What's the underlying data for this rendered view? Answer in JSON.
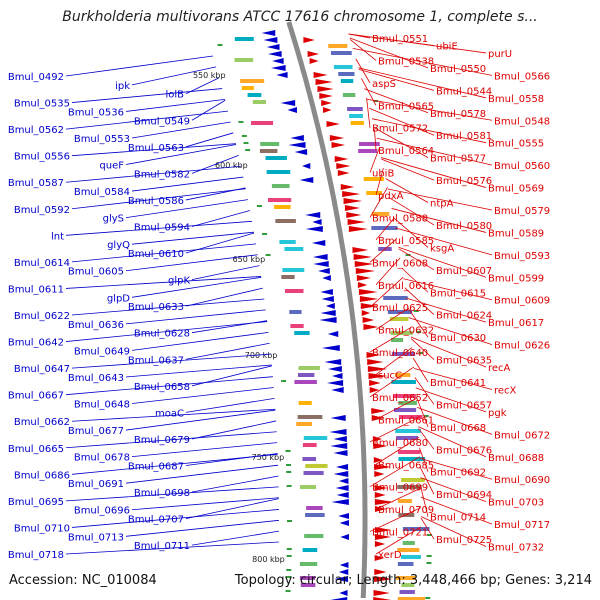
{
  "title": "Burkholderia multivorans ATCC 17616 chromosome 1, complete s...",
  "footer": {
    "accession": "Accession: NC_010084",
    "summary": "Topology: circular; Length: 3,448,466 bp; Genes: 3,214"
  },
  "colors": {
    "reverse": "#0000cc",
    "forward": "#dd0000",
    "backbone": "#8a8a8a"
  },
  "scale_labels": [
    "550 kbp",
    "600 kbp",
    "650 kbp",
    "700 kbp",
    "750 kbp",
    "800 kbp"
  ],
  "reverse_genes": [
    "Bmul_0492",
    "ipk",
    "lolB",
    "Bmul_0535",
    "Bmul_0536",
    "Bmul_0549",
    "Bmul_0562",
    "Bmul_0553",
    "Bmul_0563",
    "Bmul_0556",
    "queF",
    "Bmul_0582",
    "Bmul_0587",
    "Bmul_0584",
    "Bmul_0586",
    "Bmul_0592",
    "glyS",
    "Bmul_0594",
    "lnt",
    "glyQ",
    "Bmul_0610",
    "Bmul_0614",
    "Bmul_0605",
    "glpK",
    "Bmul_0611",
    "glpD",
    "Bmul_0633",
    "Bmul_0622",
    "Bmul_0636",
    "Bmul_0628",
    "Bmul_0642",
    "Bmul_0649",
    "Bmul_0637",
    "Bmul_0647",
    "Bmul_0643",
    "Bmul_0658",
    "Bmul_0667",
    "Bmul_0648",
    "moaC",
    "Bmul_0662",
    "Bmul_0677",
    "Bmul_0679",
    "Bmul_0665",
    "Bmul_0678",
    "Bmul_0687",
    "Bmul_0686",
    "Bmul_0691",
    "Bmul_0698",
    "Bmul_0695",
    "Bmul_0696",
    "Bmul_0707",
    "Bmul_0710",
    "Bmul_0713",
    "Bmul_0711",
    "Bmul_0718"
  ],
  "forward_genes": [
    "Bmul_0551",
    "ubiE",
    "purU",
    "Bmul_0538",
    "Bmul_0550",
    "Bmul_0566",
    "aspS",
    "Bmul_0544",
    "Bmul_0558",
    "Bmul_0565",
    "Bmul_0578",
    "Bmul_0548",
    "Bmul_0572",
    "Bmul_0581",
    "Bmul_0555",
    "Bmul_0564",
    "Bmul_0577",
    "Bmul_0560",
    "ubiB",
    "Bmul_0576",
    "Bmul_0569",
    "pdxA",
    "ntpA",
    "Bmul_0579",
    "Bmul_0588",
    "Bmul_0580",
    "Bmul_0589",
    "Bmul_0585",
    "ksgA",
    "Bmul_0593",
    "Bmul_0608",
    "Bmul_0607",
    "Bmul_0599",
    "Bmul_0616",
    "Bmul_0615",
    "Bmul_0609",
    "Bmul_0625",
    "Bmul_0624",
    "Bmul_0617",
    "Bmul_0632",
    "Bmul_0630",
    "Bmul_0626",
    "Bmul_0640",
    "Bmul_0635",
    "recA",
    "sucC",
    "Bmul_0641",
    "recX",
    "Bmul_0652",
    "Bmul_0657",
    "pgk",
    "Bmul_0661",
    "Bmul_0668",
    "Bmul_0672",
    "Bmul_0680",
    "Bmul_0676",
    "Bmul_0688",
    "Bmul_0685",
    "Bmul_0692",
    "Bmul_0690",
    "Bmul_0699",
    "Bmul_0694",
    "Bmul_0703",
    "Bmul_0709",
    "Bmul_0714",
    "Bmul_0717",
    "Bmul_0721",
    "Bmul_0725",
    "Bmul_0732",
    "xerD"
  ]
}
